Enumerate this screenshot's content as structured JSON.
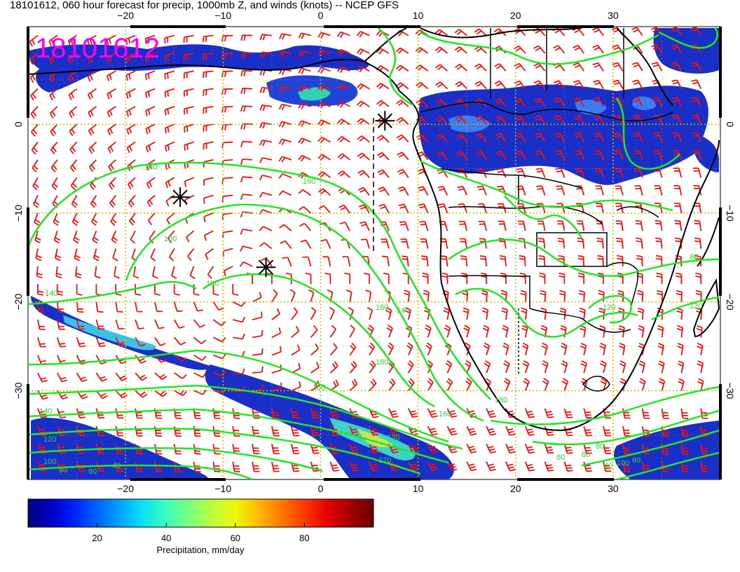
{
  "title": "18101612, 060 hour forecast for precip, 1000mb Z, and winds (knots) -- NCEP GFS",
  "date_stamp": "18101612",
  "colors": {
    "stamp": "#ff00ff",
    "contour": "#22e622",
    "wind_barb": "#ee1111",
    "graticule": "#d8b400",
    "coast": "#000000"
  },
  "map": {
    "projection": "cylindrical-equidistant",
    "lon_range": [
      -30,
      41
    ],
    "lat_range": [
      -40,
      11
    ],
    "lon_grid": [
      -20,
      -10,
      0,
      10,
      20,
      30
    ],
    "lat_grid": [
      0,
      -10,
      -20,
      -30
    ],
    "lon_tick_labels_top": [
      "−20",
      "−10",
      "0",
      "10",
      "20",
      "30"
    ],
    "lon_tick_labels_bottom": [
      "−20",
      "−10",
      "0",
      "10",
      "20",
      "30"
    ],
    "lat_tick_labels_left": [
      "0",
      "−10",
      "−20",
      "−30"
    ],
    "lat_tick_labels_right": [
      "0",
      "−10",
      "−20",
      "−30"
    ],
    "contour_labels": [
      "140",
      "160",
      "160",
      "180",
      "140",
      "160",
      "180",
      "160",
      "140",
      "120",
      "100",
      "80",
      "60",
      "40",
      "120",
      "160",
      "180",
      "120",
      "80",
      "40",
      "60",
      "60",
      "80",
      "100",
      "120",
      "140",
      "80",
      "120"
    ],
    "markers": [
      {
        "type": "asterisk",
        "lon": 6.6,
        "lat": 0.4
      },
      {
        "type": "asterisk",
        "lon": -14.4,
        "lat": -8.2
      },
      {
        "type": "asterisk",
        "lon": -5.6,
        "lat": -16.1
      }
    ]
  },
  "colorbar": {
    "label": "Precipitation, mm/day",
    "min": 0,
    "max": 100,
    "ticks": [
      "20",
      "40",
      "60",
      "80"
    ],
    "tick_values": [
      20,
      40,
      60,
      80
    ],
    "palette": [
      "#00007f",
      "#0000c4",
      "#0020ff",
      "#0064ff",
      "#00a4ff",
      "#08e4f0",
      "#3cffba",
      "#7cff7c",
      "#baff3c",
      "#f0f808",
      "#ffb800",
      "#ff7800",
      "#ff3800",
      "#e40000",
      "#a00000",
      "#6a0000"
    ]
  }
}
